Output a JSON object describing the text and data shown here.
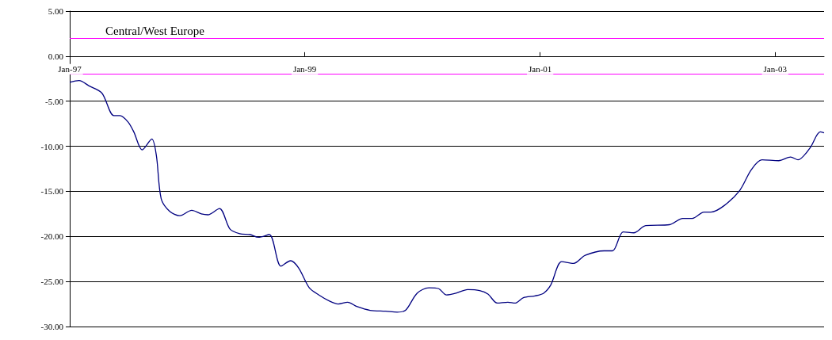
{
  "chart_data": {
    "type": "line",
    "title": "Central/West Europe",
    "x": [
      "1997-01-01",
      "1997-01-30",
      "1997-03-02",
      "1997-04-11",
      "1997-05-18",
      "1997-06-06",
      "1997-07-01",
      "1997-07-19",
      "1997-08-14",
      "1997-09-13",
      "1997-09-27",
      "1997-10-12",
      "1997-11-07",
      "1997-12-09",
      "1998-01-15",
      "1998-02-14",
      "1998-03-06",
      "1998-04-11",
      "1998-05-14",
      "1998-06-13",
      "1998-07-15",
      "1998-08-10",
      "1998-09-13",
      "1998-10-19",
      "1998-11-18",
      "1998-12-13",
      "1999-01-15",
      "1999-02-14",
      "1999-03-20",
      "1999-04-15",
      "1999-05-14",
      "1999-06-13",
      "1999-07-23",
      "1999-09-09",
      "1999-10-15",
      "1999-11-10",
      "1999-12-16",
      "2000-01-22",
      "2000-02-21",
      "2000-03-16",
      "2000-04-15",
      "2000-05-21",
      "2000-06-27",
      "2000-07-23",
      "2000-08-21",
      "2000-09-23",
      "2000-10-15",
      "2000-11-10",
      "2000-12-16",
      "2001-01-12",
      "2001-02-03",
      "2001-03-09",
      "2001-04-15",
      "2001-05-21",
      "2001-07-19",
      "2001-08-14",
      "2001-09-16",
      "2001-10-19",
      "2001-11-25",
      "2002-02-07",
      "2002-03-20",
      "2002-04-19",
      "2002-05-25",
      "2002-06-16",
      "2002-07-26",
      "2002-09-13",
      "2002-10-19",
      "2002-11-21",
      "2003-01-12",
      "2003-02-18",
      "2003-03-13",
      "2003-04-19",
      "2003-05-21",
      "2003-06-02"
    ],
    "series": [
      {
        "color": "#000080",
        "values": [
          -2.9,
          -2.7,
          -3.3,
          -4.1,
          -6.6,
          -6.6,
          -7.3,
          -8.4,
          -10.4,
          -9.2,
          -11.0,
          -15.8,
          -17.2,
          -17.7,
          -17.1,
          -17.5,
          -17.6,
          -16.9,
          -19.2,
          -19.7,
          -19.8,
          -20.1,
          -19.8,
          -23.3,
          -22.7,
          -23.5,
          -25.7,
          -26.5,
          -27.2,
          -27.5,
          -27.3,
          -27.8,
          -28.2,
          -28.3,
          -28.4,
          -28.2,
          -26.3,
          -25.7,
          -25.8,
          -26.5,
          -26.3,
          -25.9,
          -26.0,
          -26.4,
          -27.4,
          -27.3,
          -27.4,
          -26.8,
          -26.6,
          -26.3,
          -25.4,
          -22.8,
          -23.0,
          -22.1,
          -21.6,
          -21.6,
          -19.5,
          -19.6,
          -18.8,
          -18.7,
          -18.0,
          -18.0,
          -17.3,
          -17.3,
          -16.6,
          -14.9,
          -12.6,
          -11.5,
          -11.6,
          -11.2,
          -11.5,
          -10.2,
          -8.4,
          -8.5
        ]
      }
    ],
    "xlim": [
      "1997-01-01",
      "2003-06-02"
    ],
    "xticks": [
      {
        "value": "1997-01-01",
        "label": "Jan-97"
      },
      {
        "value": "1999-01-01",
        "label": "Jan-99"
      },
      {
        "value": "2001-01-01",
        "label": "Jan-01"
      },
      {
        "value": "2003-01-01",
        "label": "Jan-03"
      }
    ],
    "ylim": [
      -30,
      5
    ],
    "yticks": [
      {
        "value": -30,
        "label": "-30.00"
      },
      {
        "value": -25,
        "label": "-25.00"
      },
      {
        "value": -20,
        "label": "-20.00"
      },
      {
        "value": -15,
        "label": "-15.00"
      },
      {
        "value": -10,
        "label": "-10.00"
      },
      {
        "value": -5,
        "label": "-5.00"
      },
      {
        "value": 0,
        "label": "0.00"
      },
      {
        "value": 5,
        "label": "5.00"
      }
    ],
    "ref_lines": [
      {
        "axis": "y",
        "value": 2,
        "color": "#ff00ff"
      },
      {
        "axis": "y",
        "value": -2,
        "color": "#ff00ff"
      }
    ],
    "grid": "y"
  }
}
